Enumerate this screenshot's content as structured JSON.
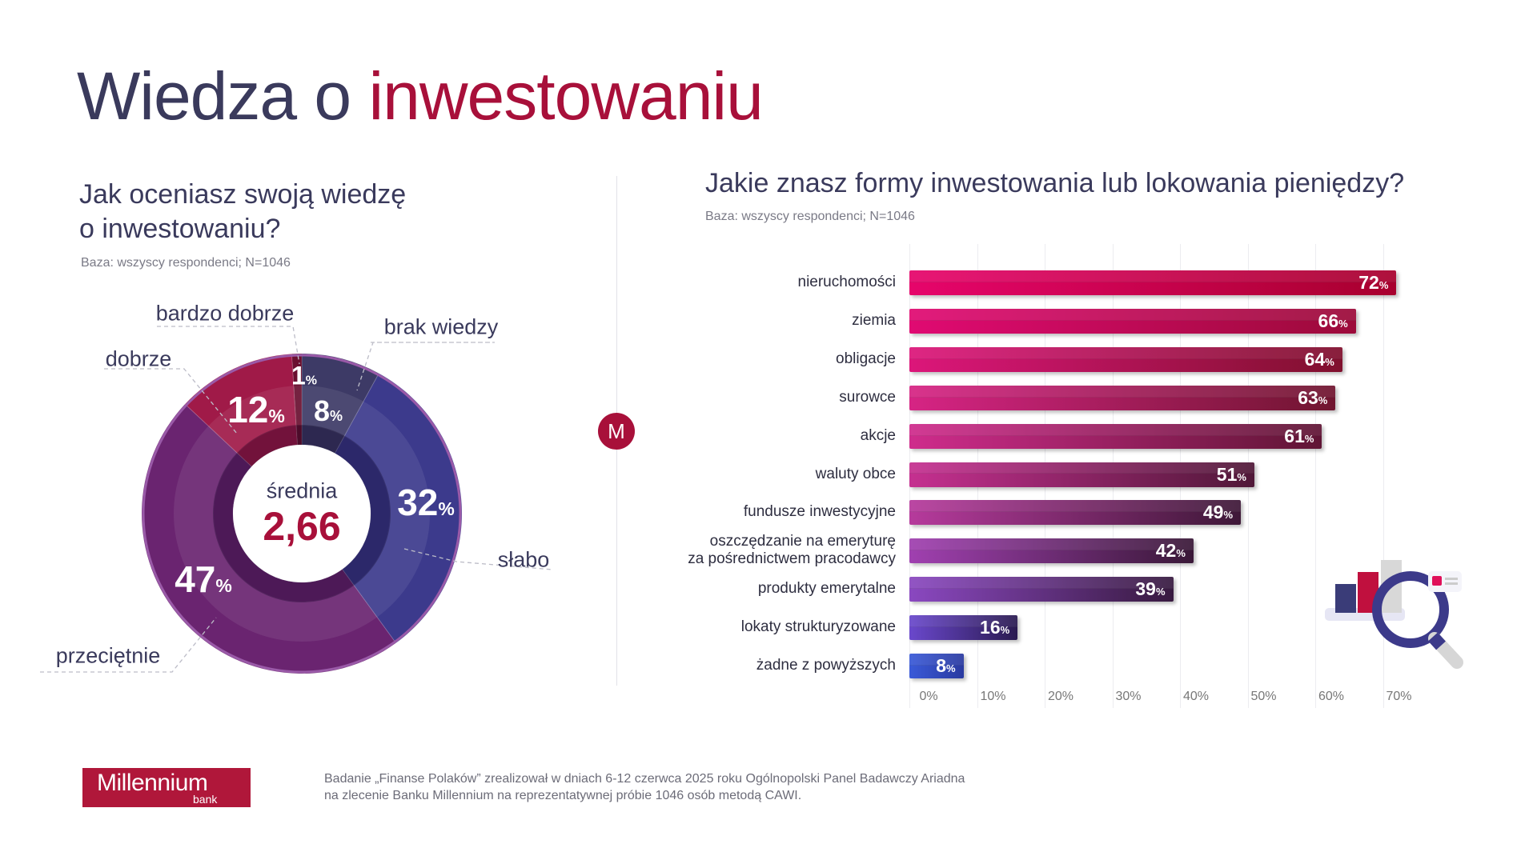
{
  "title": {
    "part1": "Wiedza o ",
    "part2": "inwestowaniu"
  },
  "left": {
    "question_line1": "Jak oceniasz swoją wiedzę",
    "question_line2": "o inwestowaniu?",
    "base": "Baza: wszyscy respondenci; N=1046",
    "center_label": "średnia",
    "center_value": "2,66"
  },
  "right": {
    "question": "Jakie znasz formy inwestowania lub lokowania pieniędzy?",
    "base": "Baza: wszyscy respondenci; N=1046"
  },
  "divider_badge": "M",
  "footer": {
    "logo_main": "Millennium",
    "logo_sub": "bank",
    "note_line1": "Badanie „Finanse Polaków” zrealizował w dniach 6-12 czerwca 2025 roku Ogólnopolski Panel Badawczy Ariadna",
    "note_line2": "na zlecenie Banku Millennium na reprezentatywnej próbie 1046 osób metodą CAWI."
  },
  "colors": {
    "title_dark": "#3a3a5c",
    "accent": "#a8103a"
  },
  "chart_data": [
    {
      "type": "pie",
      "variant": "donut",
      "slices": [
        {
          "label": "brak wiedzy",
          "value": 8,
          "value_label": "8",
          "color": "#3d3a66"
        },
        {
          "label": "słabo",
          "value": 32,
          "value_label": "32",
          "color": "#3c3a8c"
        },
        {
          "label": "przeciętnie",
          "value": 47,
          "value_label": "47",
          "color": "#6a2470"
        },
        {
          "label": "dobrze",
          "value": 12,
          "value_label": "12",
          "color": "#a01a48"
        },
        {
          "label": "bardzo dobrze",
          "value": 1,
          "value_label": "1",
          "color": "#6a1030"
        }
      ],
      "unit": "%"
    },
    {
      "type": "bar",
      "orientation": "horizontal",
      "categories": [
        "nieruchomości",
        "ziemia",
        "obligacje",
        "surowce",
        "akcje",
        "waluty obce",
        "fundusze inwestycyjne",
        "oszczędzanie na emeryturę\nza pośrednictwem pracodawcy",
        "produkty emerytalne",
        "lokaty strukturyzowane",
        "żadne z powyższych"
      ],
      "values": [
        72,
        66,
        64,
        63,
        61,
        51,
        49,
        42,
        39,
        16,
        8
      ],
      "unit": "%",
      "xlim": [
        0,
        70
      ],
      "xticks": [
        "0%",
        "10%",
        "20%",
        "30%",
        "40%",
        "50%",
        "60%",
        "70%"
      ],
      "grid": true,
      "bar_colors_start": [
        "#e6056b",
        "#e00a72",
        "#dc167a",
        "#d62484",
        "#cf2c8c",
        "#c53090",
        "#b63a9c",
        "#a040b0",
        "#8a48c0",
        "#6a48cc",
        "#3a5ad8"
      ],
      "bar_colors_end": [
        "#a8002e",
        "#9c0a3a",
        "#80102e",
        "#701530",
        "#601535",
        "#501838",
        "#3e1838",
        "#3a1838",
        "#381a40",
        "#2a1a50",
        "#2a3aa0"
      ]
    }
  ]
}
